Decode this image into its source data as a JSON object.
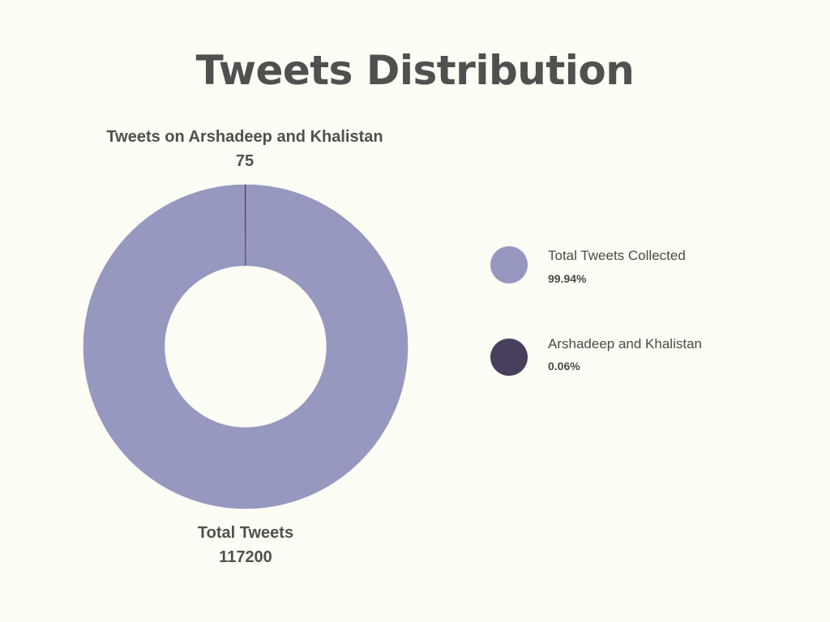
{
  "chart_data": {
    "type": "pie",
    "title": "Tweets Distribution",
    "slices": [
      {
        "label": "Total Tweets Collected",
        "value": 99.94,
        "display": "99.94%",
        "color": "#9698c0"
      },
      {
        "label": "Arshadeep and Khalistan",
        "value": 0.06,
        "display": "0.06%",
        "color": "#483f5d"
      }
    ],
    "annotations": [
      {
        "label": "Tweets on Arshadeep and Khalistan",
        "value": "75"
      },
      {
        "label": "Total Tweets",
        "value": "117200"
      }
    ],
    "legend_position": "right",
    "donut": true
  }
}
